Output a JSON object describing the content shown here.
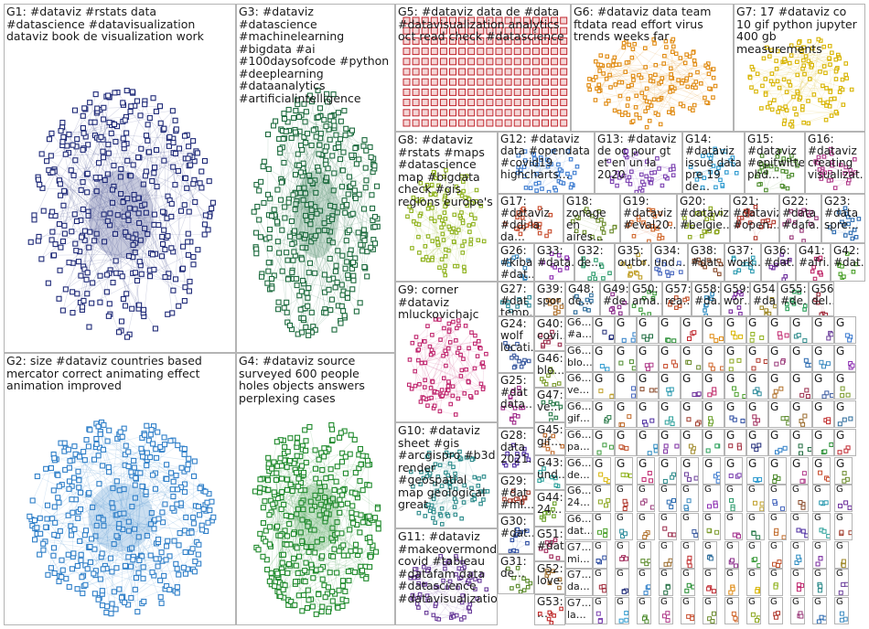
{
  "groups": [
    {
      "id": "G1",
      "label": "G1: #dataviz #rstats data #datascience #datavisualization dataviz book de visualization work",
      "color": "#1f2a78"
    },
    {
      "id": "G2",
      "label": "G2: size #dataviz countries based mercator correct animating effect animation improved",
      "color": "#2f7fc8"
    },
    {
      "id": "G3",
      "label": "G3: #dataviz #datascience #machinelearning #bigdata #ai #100daysofcode #python #deeplearning #dataanalytics #artificialintelligence",
      "color": "#1d6b3e"
    },
    {
      "id": "G4",
      "label": "G4: #dataviz source surveyed 600 people holes objects answers perplexing cases",
      "color": "#1f8a2c"
    },
    {
      "id": "G5",
      "label": "G5: #dataviz data de #data #datavisualization analytics oct read check #datascience",
      "color": "#c0262d"
    },
    {
      "id": "G6",
      "label": "G6: #dataviz data team ftdata read effort virus trends weeks far",
      "color": "#e08a10"
    },
    {
      "id": "G7",
      "label": "G7: 17 #dataviz co 10 gif python jupyter 400 gb measurements",
      "color": "#d8b400"
    },
    {
      "id": "G8",
      "label": "G8: #dataviz #rstats #maps #datascience map #bigdata check #gis regions europe's",
      "color": "#8fb21c"
    },
    {
      "id": "G9",
      "label": "G9: corner #dataviz mluckovichajc",
      "color": "#c0266e"
    },
    {
      "id": "G10",
      "label": "G10: #dataviz sheet #gis #arcgispro #b3d render #geospatial map geological great",
      "color": "#2a8a8a"
    },
    {
      "id": "G11",
      "label": "G11: #dataviz #makeovermond… covid #tableau #datafam data #datascience #datavisualizatio…",
      "color": "#6a3d9a"
    },
    {
      "id": "G12",
      "label": "G12: #dataviz data #opendata #covid19 highcharts…",
      "color": "#3a7ad0"
    },
    {
      "id": "G13",
      "label": "G13: #dataviz de oc pour gt et en un la 2020",
      "color": "#7a3fb0"
    },
    {
      "id": "G14",
      "label": "G14: #dataviz issue data pre 19 de…",
      "color": "#2f9bd0"
    },
    {
      "id": "G15",
      "label": "G15: #dataviz #epitwitter phd…",
      "color": "#4a8a2a"
    },
    {
      "id": "G16",
      "label": "G16: #dataviz creating visualizat…",
      "color": "#b03a8a"
    },
    {
      "id": "G17",
      "label": "G17: #dataviz #ddj la da…",
      "color": "#c74a2a"
    },
    {
      "id": "G18",
      "label": "G18: zonage en aires…",
      "color": "#6a8a2a"
    },
    {
      "id": "G19",
      "label": "G19: #dataviz #eval20…",
      "color": "#d0662a"
    },
    {
      "id": "G20",
      "label": "G20: #dataviz #belgie…",
      "color": "#8aa51c"
    },
    {
      "id": "G21",
      "label": "G21: #dataviz #open…",
      "color": "#b0362a"
    },
    {
      "id": "G22",
      "label": "G22: #data #dafa…",
      "color": "#9a3a7a"
    },
    {
      "id": "G23",
      "label": "G23: #data spre…",
      "color": "#2a6ab0"
    },
    {
      "id": "G26",
      "label": "G26: #kiba #dat…",
      "color": "#3a8ac0"
    },
    {
      "id": "G33",
      "label": "G33: #data…",
      "color": "#8a2ab0"
    },
    {
      "id": "G32",
      "label": "G32: de…",
      "color": "#2a9a6a"
    },
    {
      "id": "G35",
      "label": "G35: outbr…",
      "color": "#c0a02a"
    },
    {
      "id": "G34",
      "label": "G34: und…",
      "color": "#4a6ac0"
    },
    {
      "id": "G38",
      "label": "G38: #dat…",
      "color": "#8a4a2a"
    },
    {
      "id": "G37",
      "label": "G37: work…",
      "color": "#2a9ab0"
    },
    {
      "id": "G36",
      "label": "G36: #dat…",
      "color": "#6a2a9a"
    },
    {
      "id": "G41",
      "label": "G41: #afri…",
      "color": "#c02a6a"
    },
    {
      "id": "G42",
      "label": "G42: #dat…",
      "color": "#4aa02a"
    },
    {
      "id": "G27",
      "label": "G27: #dat temp…",
      "color": "#2a8a9a"
    },
    {
      "id": "G39",
      "label": "G39: spor…",
      "color": "#b0702a"
    },
    {
      "id": "G40",
      "label": "G40: covi…",
      "color": "#9a2a4a"
    },
    {
      "id": "G24",
      "label": "G24: wolf locati…",
      "color": "#3a5aa0"
    },
    {
      "id": "G46",
      "label": "G46: blo…",
      "color": "#7a9a2a"
    },
    {
      "id": "G25",
      "label": "G25: #dat data…",
      "color": "#a02a8a"
    },
    {
      "id": "G47",
      "label": "G47: ve…",
      "color": "#2a7a4a"
    },
    {
      "id": "G45",
      "label": "G45: gif…",
      "color": "#c06a2a"
    },
    {
      "id": "G28",
      "label": "G28: data 2021…",
      "color": "#4a2aa0"
    },
    {
      "id": "G43",
      "label": "G43: und…",
      "color": "#2aa09a"
    },
    {
      "id": "G29",
      "label": "G29: #dat #ml…",
      "color": "#a03a2a"
    },
    {
      "id": "G44",
      "label": "G44: 24…",
      "color": "#6aa02a"
    },
    {
      "id": "G30",
      "label": "G30: #dat…",
      "color": "#2a4aa0"
    },
    {
      "id": "G51",
      "label": "G51: #dat…",
      "color": "#a02a5a"
    },
    {
      "id": "G31",
      "label": "G31: de…",
      "color": "#5a8a2a"
    },
    {
      "id": "G52",
      "label": "G52: love…",
      "color": "#9a6a2a"
    },
    {
      "id": "G53",
      "label": "G53: …",
      "color": "#c02a2a"
    },
    {
      "id": "G48",
      "label": "G48: de…",
      "color": "#2a6a9a"
    },
    {
      "id": "G49",
      "label": "G49: #de…",
      "color": "#8a2a8a"
    },
    {
      "id": "G50",
      "label": "G50: ama…",
      "color": "#3a9a3a"
    },
    {
      "id": "G57",
      "label": "G57: rea…",
      "color": "#c0502a"
    },
    {
      "id": "G58",
      "label": "G58: #da…",
      "color": "#2a8ac0"
    },
    {
      "id": "G59",
      "label": "G59: wor…",
      "color": "#7a2aa0"
    },
    {
      "id": "G54",
      "label": "G54: #da…",
      "color": "#a08a2a"
    },
    {
      "id": "G55",
      "label": "G55: #de…",
      "color": "#2aa05a"
    },
    {
      "id": "G56",
      "label": "G56: del…",
      "color": "#a02a3a"
    }
  ],
  "small_group_tags": {
    "prefix": "G",
    "col_a": [
      "G6…",
      "G6…",
      "G6…",
      "G6…",
      "G6…",
      "G6…",
      "G6…",
      "G6…",
      "G7…",
      "G7…",
      "G7…"
    ],
    "col_a_words": [
      "#a…",
      "blo…",
      "ve…",
      "gif…",
      "pa…",
      "de…",
      "24…",
      "dat…",
      "mi…",
      "da…",
      "la…"
    ]
  }
}
